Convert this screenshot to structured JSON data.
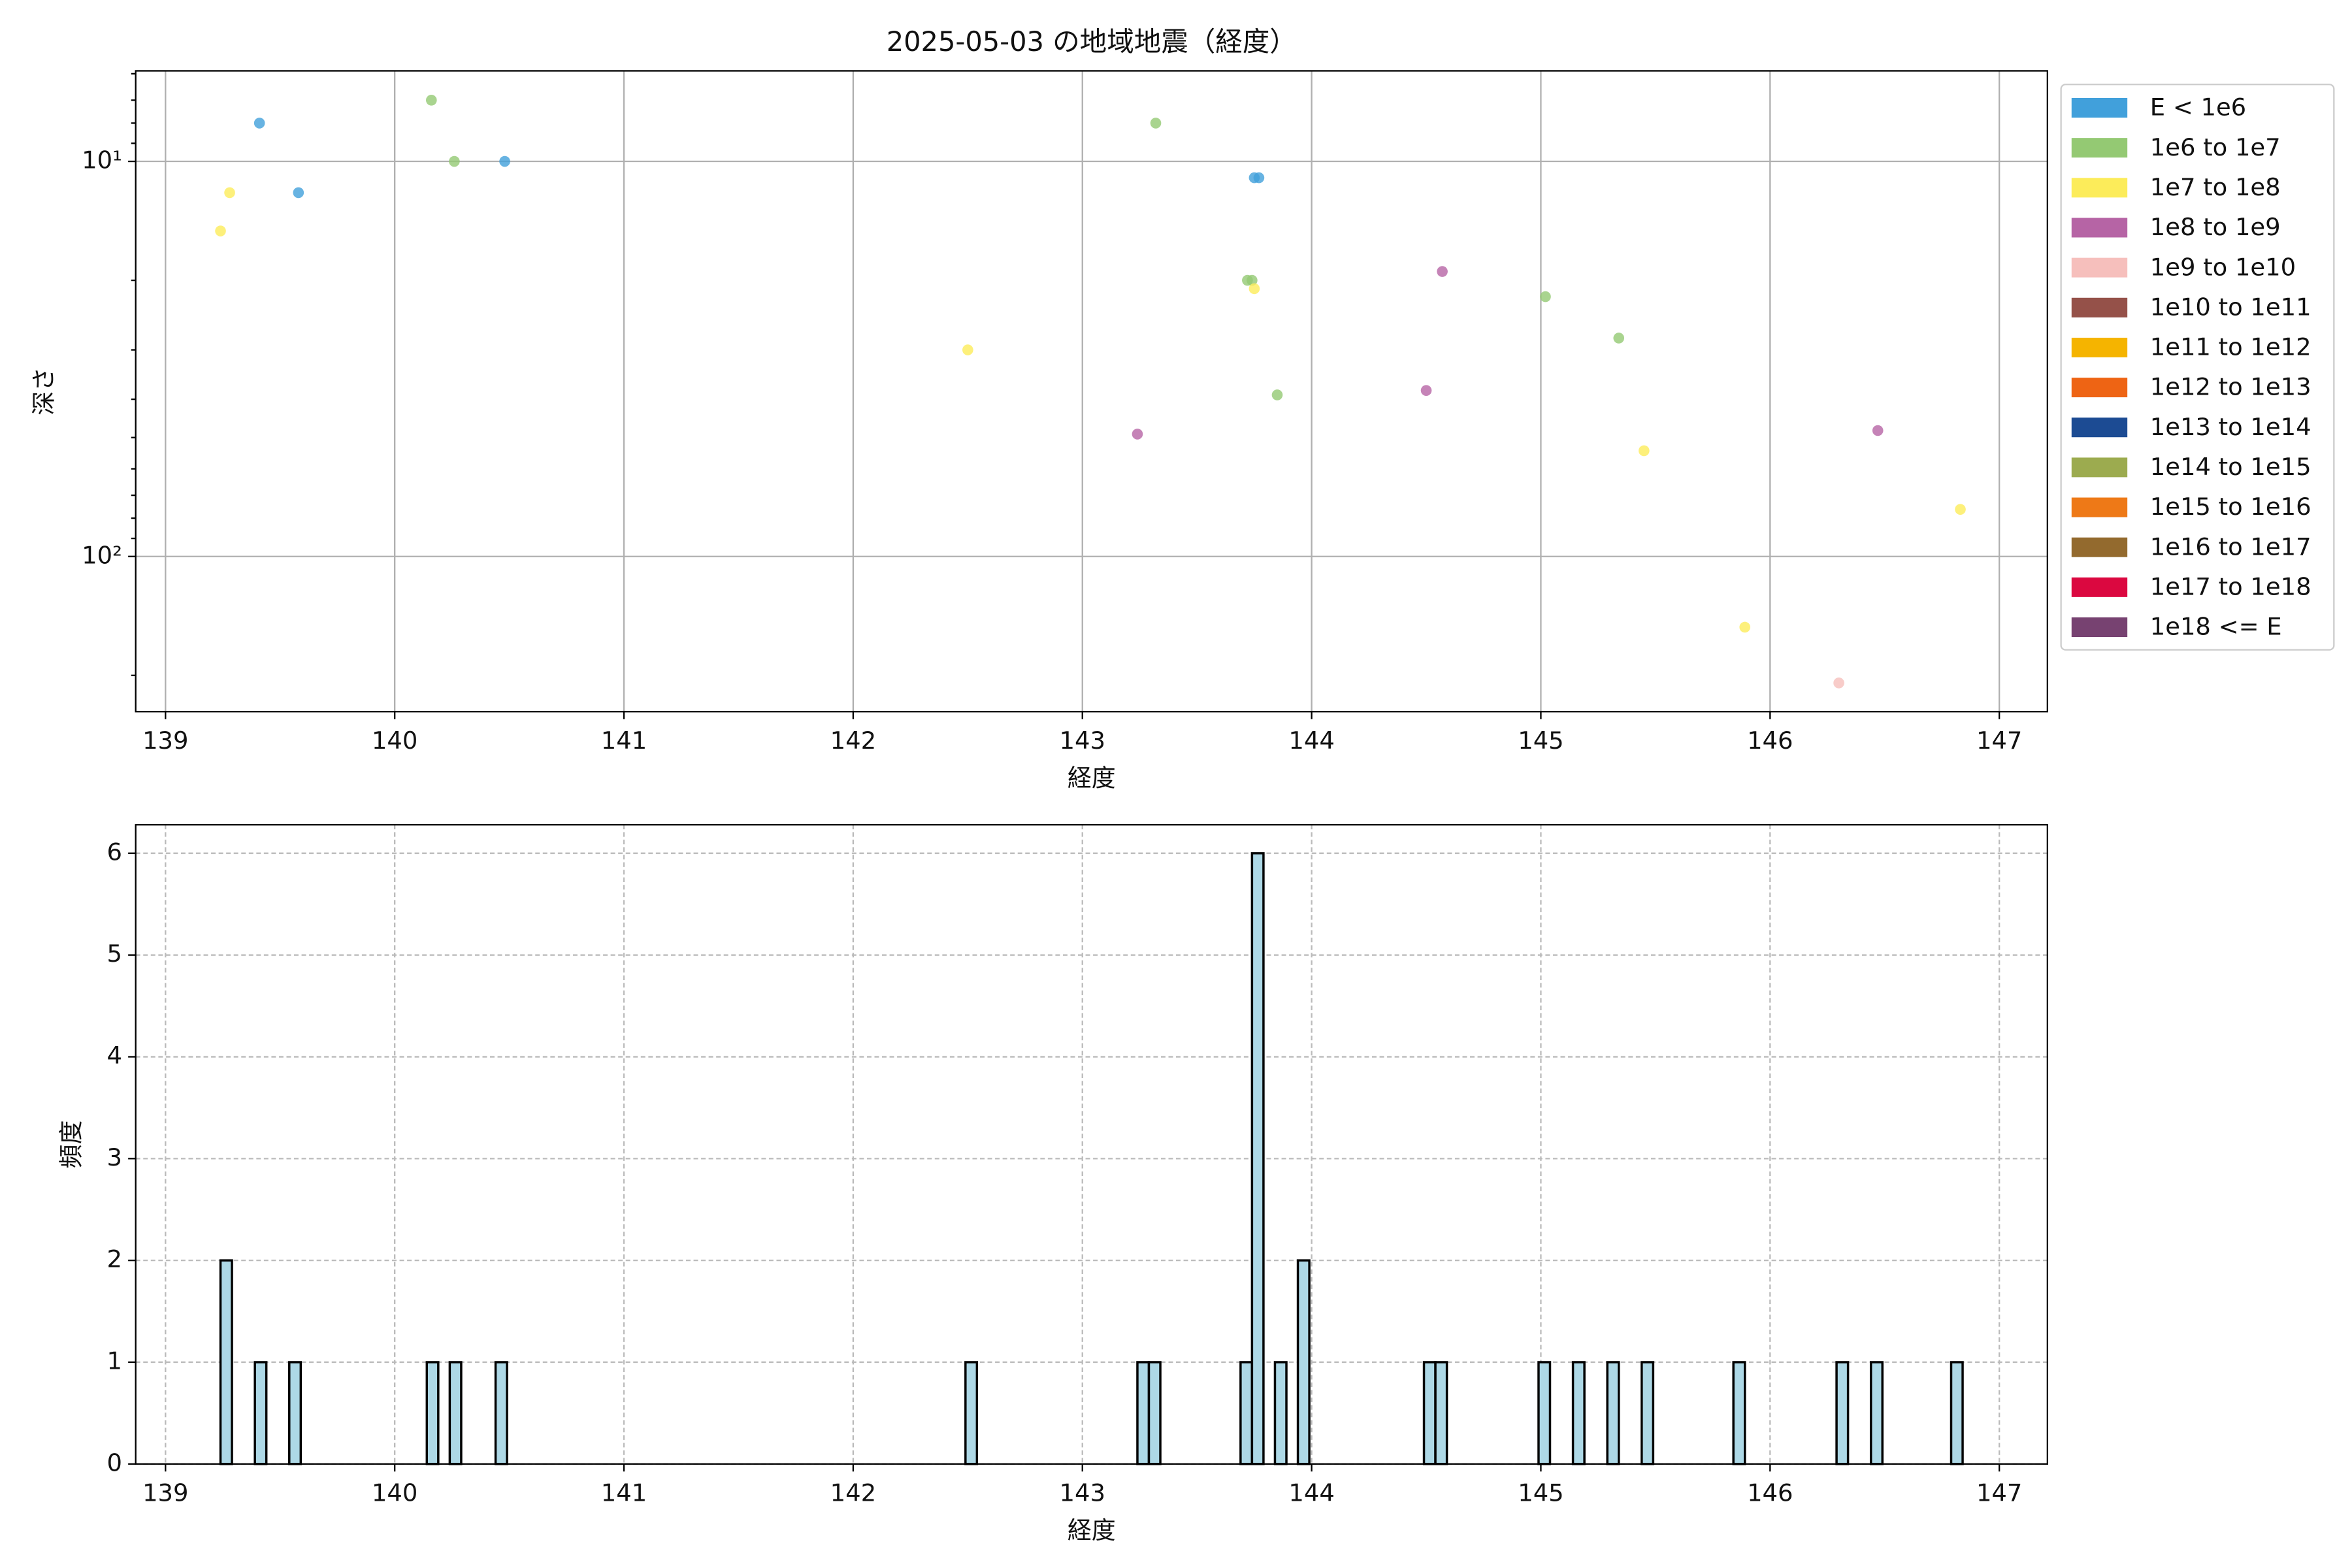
{
  "chart_data": [
    {
      "type": "scatter",
      "title": "2025-05-03 の地域地震（経度）",
      "x_label": "経度",
      "y_label": "深さ",
      "xlim": [
        138.87,
        147.21
      ],
      "xticks": [
        139,
        140,
        141,
        142,
        143,
        144,
        145,
        146,
        147
      ],
      "ylim": [
        5.9,
        247
      ],
      "yscale": "log",
      "yinvert": true,
      "yticks": [
        {
          "value": 10,
          "label": "10¹"
        },
        {
          "value": 100,
          "label": "10²"
        }
      ],
      "minor_yticks": [
        6,
        7,
        8,
        9,
        20,
        30,
        40,
        50,
        60,
        70,
        80,
        90,
        200
      ],
      "grid": true,
      "legend": "outside upper right",
      "series": [
        {
          "name": "E < 1e6",
          "color": "#41a0db",
          "x": [
            139.41,
            139.58,
            140.48,
            143.75,
            143.77
          ],
          "values": [
            8.0,
            12.0,
            10,
            11.0,
            11.0
          ]
        },
        {
          "name": "1e6 to 1e7",
          "color": "#94c973",
          "x": [
            140.16,
            140.26,
            143.32,
            143.72,
            143.74,
            143.85,
            145.02,
            145.34
          ],
          "values": [
            7.0,
            10,
            8.0,
            20,
            20,
            39,
            22,
            28
          ]
        },
        {
          "name": "1e7 to 1e8",
          "color": "#fcec5a",
          "x": [
            139.24,
            139.28,
            142.5,
            143.75,
            145.45,
            145.89,
            146.83
          ],
          "values": [
            15,
            12,
            30,
            21,
            54,
            151,
            76
          ]
        },
        {
          "name": "1e8 to 1e9",
          "color": "#b664a5",
          "x": [
            143.24,
            144.57,
            144.5,
            146.47
          ],
          "values": [
            49,
            19,
            38,
            48
          ]
        },
        {
          "name": "1e9 to 1e10",
          "color": "#f6bfbc",
          "x": [
            146.3
          ],
          "values": [
            209
          ]
        },
        {
          "name": "1e10 to 1e11",
          "color": "#955149",
          "x": [],
          "values": []
        },
        {
          "name": "1e11 to 1e12",
          "color": "#f5b400",
          "x": [],
          "values": []
        },
        {
          "name": "1e12 to 1e13",
          "color": "#ee6414",
          "x": [],
          "values": []
        },
        {
          "name": "1e13 to 1e14",
          "color": "#1c4b93",
          "x": [],
          "values": []
        },
        {
          "name": "1e14 to 1e15",
          "color": "#9cab4f",
          "x": [],
          "values": []
        },
        {
          "name": "1e15 to 1e16",
          "color": "#ee7917",
          "x": [],
          "values": []
        },
        {
          "name": "1e16 to 1e17",
          "color": "#936a2e",
          "x": [],
          "values": []
        },
        {
          "name": "1e17 to 1e18",
          "color": "#db0840",
          "x": [],
          "values": []
        },
        {
          "name": "1e18 <= E",
          "color": "#774271",
          "x": [],
          "values": []
        }
      ]
    },
    {
      "type": "histogram",
      "x_label": "経度",
      "y_label": "頻度",
      "color": "#add8e6",
      "edgecolor": "#000000",
      "xlim": [
        138.87,
        147.21
      ],
      "xticks": [
        139,
        140,
        141,
        142,
        143,
        144,
        145,
        146,
        147
      ],
      "ylim": [
        0,
        6.28
      ],
      "yticks": [
        0,
        1,
        2,
        3,
        4,
        5,
        6
      ],
      "grid": true,
      "bins": [
        139.24,
        139.29,
        139.34,
        139.39,
        139.44,
        139.49,
        139.54,
        139.59,
        139.64,
        139.69,
        139.74,
        139.79,
        139.84,
        139.89,
        139.94,
        139.99,
        140.04,
        140.09,
        140.14,
        140.19,
        140.24,
        140.29,
        140.34,
        140.39,
        140.44,
        140.49,
        140.54,
        140.59,
        140.64,
        140.69,
        140.74,
        140.79,
        140.84,
        140.89,
        140.94,
        140.99,
        141.04,
        141.09,
        141.14,
        141.19,
        141.24,
        141.29,
        141.34,
        141.39,
        141.44,
        141.49,
        141.54,
        141.59,
        141.64,
        141.69,
        141.74,
        141.79,
        141.84,
        141.89,
        141.94,
        141.99,
        142.04,
        142.09,
        142.14,
        142.19,
        142.24,
        142.29,
        142.34,
        142.39,
        142.44,
        142.49,
        142.54,
        142.59,
        142.64,
        142.69,
        142.74,
        142.79,
        142.84,
        142.89,
        142.94,
        142.99,
        143.04,
        143.09,
        143.14,
        143.19,
        143.24,
        143.29,
        143.34,
        143.39,
        143.44,
        143.49,
        143.54,
        143.59,
        143.64,
        143.69,
        143.74,
        143.79,
        143.84,
        143.89,
        143.94,
        143.99,
        144.04,
        144.09,
        144.14,
        144.19,
        144.24,
        144.29,
        144.34,
        144.39,
        144.44,
        144.49,
        144.54,
        144.59,
        144.64,
        144.69,
        144.74,
        144.79,
        144.84,
        144.89,
        144.94,
        144.99,
        145.04,
        145.09,
        145.14,
        145.19,
        145.24,
        145.29,
        145.34,
        145.39,
        145.44,
        145.49,
        145.54,
        145.59,
        145.64,
        145.69,
        145.74,
        145.79,
        145.84,
        145.89,
        145.94,
        145.99,
        146.04,
        146.09,
        146.14,
        146.19,
        146.24,
        146.29,
        146.34,
        146.39,
        146.44,
        146.49,
        146.54,
        146.59,
        146.64,
        146.69,
        146.74,
        146.79,
        146.84
      ],
      "values": [
        2,
        0,
        0,
        1,
        0,
        0,
        1,
        0,
        0,
        0,
        0,
        0,
        0,
        0,
        0,
        0,
        0,
        0,
        1,
        0,
        1,
        0,
        0,
        0,
        1,
        0,
        0,
        0,
        0,
        0,
        0,
        0,
        0,
        0,
        0,
        0,
        0,
        0,
        0,
        0,
        0,
        0,
        0,
        0,
        0,
        0,
        0,
        0,
        0,
        0,
        0,
        0,
        0,
        0,
        0,
        0,
        0,
        0,
        0,
        0,
        0,
        0,
        0,
        0,
        0,
        1,
        0,
        0,
        0,
        0,
        0,
        0,
        0,
        0,
        0,
        0,
        0,
        0,
        0,
        0,
        1,
        1,
        0,
        0,
        0,
        0,
        0,
        0,
        0,
        1,
        6,
        0,
        1,
        0,
        2,
        0,
        0,
        0,
        0,
        0,
        0,
        0,
        0,
        0,
        0,
        1,
        1,
        0,
        0,
        0,
        0,
        0,
        0,
        0,
        0,
        1,
        0,
        0,
        1,
        0,
        0,
        1,
        0,
        0,
        1,
        0,
        0,
        0,
        0,
        0,
        0,
        0,
        1,
        0,
        0,
        0,
        0,
        0,
        0,
        0,
        0,
        1,
        0,
        0,
        1,
        0,
        0,
        0,
        0,
        0,
        0,
        1
      ]
    }
  ]
}
